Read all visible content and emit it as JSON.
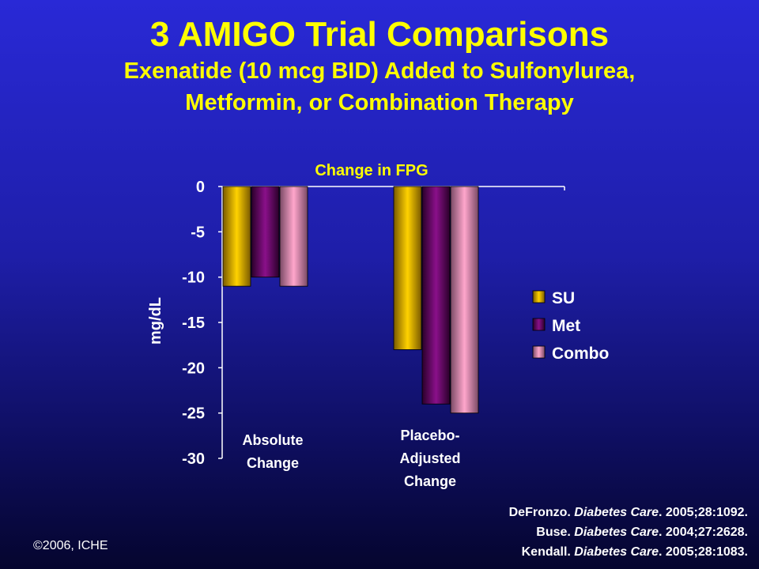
{
  "slide": {
    "title": "3 AMIGO Trial Comparisons",
    "subtitle_line1": "Exenatide (10 mcg BID) Added to Sulfonylurea,",
    "subtitle_line2": "Metformin, or Combination Therapy",
    "credit": "©2006, ICHE",
    "references": [
      {
        "author": "DeFronzo. ",
        "journal": "Diabetes Care",
        "cite": ". 2005;28:1092."
      },
      {
        "author": "Buse. ",
        "journal": "Diabetes Care",
        "cite": ". 2004;27:2628."
      },
      {
        "author": "Kendall. ",
        "journal": "Diabetes Care",
        "cite": ". 2005;28:1083."
      }
    ]
  },
  "colors": {
    "title": "#ffff00",
    "text": "#ffffff",
    "SU": "#e6b800",
    "Met": "#6e0a6e",
    "Combo": "#f08cb4"
  },
  "chart_data": {
    "type": "bar",
    "title": "Change in FPG",
    "ylabel": "mg/dL",
    "xlabel": "",
    "ylim": [
      -30,
      0
    ],
    "yticks": [
      0,
      -5,
      -10,
      -15,
      -20,
      -25,
      -30
    ],
    "categories": [
      [
        "Absolute",
        "Change"
      ],
      [
        "Placebo-",
        "Adjusted",
        "Change"
      ]
    ],
    "series": [
      {
        "name": "SU",
        "values": [
          -11,
          -18
        ]
      },
      {
        "name": "Met",
        "values": [
          -10,
          -24
        ]
      },
      {
        "name": "Combo",
        "values": [
          -11,
          -25
        ]
      }
    ],
    "legend": "right",
    "grid": false
  }
}
